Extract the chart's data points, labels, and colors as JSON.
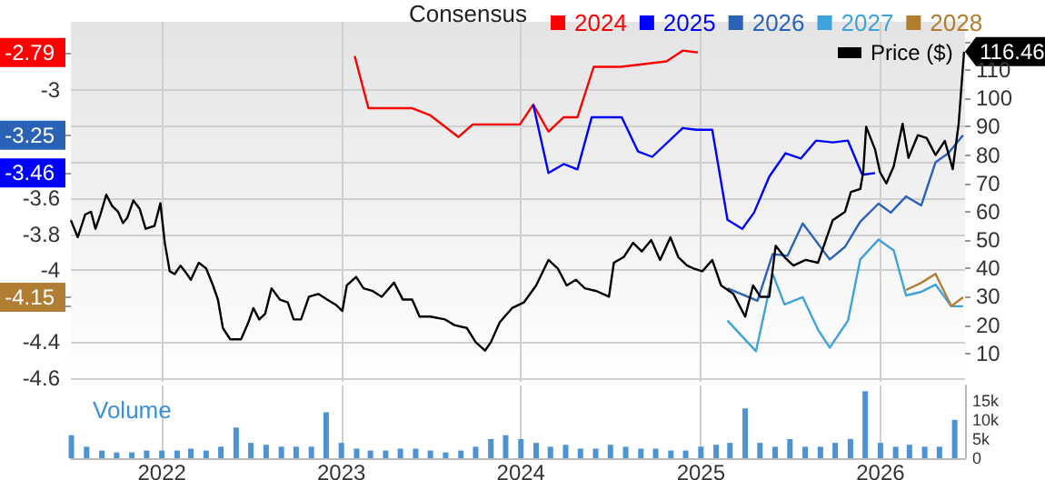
{
  "chart_data": [
    {
      "type": "line",
      "legend": "top right",
      "legend_title": "Consensus",
      "xlim": [
        "2021-06-30",
        "2026-06-22"
      ],
      "xticks": [
        "2022",
        "2023",
        "2024",
        "2025",
        "2026"
      ],
      "ylim": [
        -4.62,
        -2.62
      ],
      "yticks": [
        -2.79,
        -3,
        {
          "value": -3.2,
          "label": null
        },
        -3.25,
        {
          "value": -3.4,
          "label": null
        },
        -3.46,
        -3.6,
        -3.8,
        -4,
        -4.15,
        {
          "value": -4.2,
          "label": null
        },
        -4.4,
        -4.6
      ],
      "y2lim": [
        0,
        127
      ],
      "y2ticks": [
        10,
        20,
        30,
        40,
        50,
        60,
        70,
        80,
        90,
        100,
        110,
        {
          "value": 120,
          "label": null
        }
      ],
      "tick_labels": "y",
      "grid": true,
      "series": [
        {
          "name": "2024",
          "color": "#ff0000",
          "axis": "y",
          "x": [
            "2023-01-28",
            "2023-02-25",
            "2023-05-25",
            "2023-07-01",
            "2023-08-27",
            "2023-09-25",
            "2023-12-30",
            "2024-01-26",
            "2024-02-26",
            "2024-03-28",
            "2024-04-25",
            "2024-05-28",
            "2024-07-22",
            "2024-10-23",
            "2024-11-25",
            "2024-12-26"
          ],
          "values": [
            -2.81,
            -3.1,
            -3.1,
            -3.14,
            -3.26,
            -3.19,
            -3.19,
            -3.08,
            -3.23,
            -3.15,
            -3.15,
            -2.87,
            -2.87,
            -2.84,
            -2.78,
            -2.79
          ]
        },
        {
          "name": "2025",
          "color": "#0000ff",
          "axis": "y",
          "x": [
            "2024-01-26",
            "2024-02-26",
            "2024-03-28",
            "2024-04-25",
            "2024-05-24",
            "2024-07-24",
            "2024-08-26",
            "2024-09-24",
            "2024-11-25",
            "2024-12-23",
            "2025-01-24",
            "2025-02-24",
            "2025-03-26",
            "2025-04-19",
            "2025-05-20",
            "2025-06-22",
            "2025-07-23",
            "2025-08-23",
            "2025-09-26",
            "2025-10-27",
            "2025-11-25",
            "2025-12-21"
          ],
          "values": [
            -3.08,
            -3.46,
            -3.41,
            -3.44,
            -3.15,
            -3.15,
            -3.34,
            -3.37,
            -3.21,
            -3.22,
            -3.22,
            -3.72,
            -3.77,
            -3.68,
            -3.48,
            -3.35,
            -3.38,
            -3.28,
            -3.29,
            -3.28,
            -3.47,
            -3.46
          ]
        },
        {
          "name": "2026",
          "color": "#2a62b8",
          "axis": "y",
          "x": [
            "2025-02-24",
            "2025-04-26",
            "2025-05-27",
            "2025-06-26",
            "2025-07-27",
            "2025-09-20",
            "2025-10-21",
            "2025-11-21",
            "2025-12-28",
            "2026-01-22",
            "2026-02-22",
            "2026-03-25",
            "2026-04-23",
            "2026-05-19",
            "2026-06-18"
          ],
          "values": [
            -4.1,
            -4.17,
            -3.91,
            -3.92,
            -3.74,
            -3.94,
            -3.87,
            -3.73,
            -3.63,
            -3.68,
            -3.59,
            -3.64,
            -3.4,
            -3.35,
            -3.25
          ]
        },
        {
          "name": "2027",
          "color": "#3fa2d8",
          "axis": "y",
          "x": [
            "2025-02-24",
            "2025-04-23",
            "2025-05-27",
            "2025-06-20",
            "2025-07-27",
            "2025-08-27",
            "2025-09-20",
            "2025-10-27",
            "2025-11-21",
            "2025-12-28",
            "2026-01-28",
            "2026-02-22",
            "2026-03-25",
            "2026-04-23",
            "2026-05-25",
            "2026-06-18"
          ],
          "values": [
            -4.28,
            -4.45,
            -4.02,
            -4.19,
            -4.15,
            -4.33,
            -4.43,
            -4.28,
            -3.94,
            -3.83,
            -3.89,
            -4.14,
            -4.12,
            -4.08,
            -4.2,
            -4.2
          ]
        },
        {
          "name": "2028",
          "color": "#b07d32",
          "axis": "y",
          "x": [
            "2026-02-22",
            "2026-03-25",
            "2026-04-23",
            "2026-05-25",
            "2026-06-18"
          ],
          "values": [
            -4.11,
            -4.07,
            -4.02,
            -4.2,
            -4.15
          ]
        },
        {
          "name": "Price ($)",
          "color": "#000000",
          "axis": "y2",
          "x": [
            "2021-06-30",
            "2021-07-14",
            "2021-07-29",
            "2021-08-10",
            "2021-08-19",
            "2021-08-29",
            "2021-09-10",
            "2021-09-22",
            "2021-10-04",
            "2021-10-14",
            "2021-10-23",
            "2021-11-04",
            "2021-11-17",
            "2021-11-29",
            "2021-12-17",
            "2021-12-29",
            "2022-01-07",
            "2022-01-17",
            "2022-01-27",
            "2022-02-08",
            "2022-02-17",
            "2022-03-01",
            "2022-03-17",
            "2022-04-01",
            "2022-04-15",
            "2022-04-25",
            "2022-05-05",
            "2022-05-20",
            "2022-06-11",
            "2022-06-26",
            "2022-07-06",
            "2022-07-18",
            "2022-07-30",
            "2022-08-12",
            "2022-08-29",
            "2022-09-14",
            "2022-09-26",
            "2022-10-11",
            "2022-10-27",
            "2022-11-15",
            "2022-12-03",
            "2022-12-22",
            "2023-01-03",
            "2023-01-12",
            "2023-01-31",
            "2023-02-15",
            "2023-03-06",
            "2023-03-24",
            "2023-04-18",
            "2023-05-06",
            "2023-05-25",
            "2023-06-09",
            "2023-07-01",
            "2023-07-31",
            "2023-08-19",
            "2023-09-13",
            "2023-10-01",
            "2023-10-20",
            "2023-11-01",
            "2023-11-19",
            "2023-12-14",
            "2024-01-07",
            "2024-02-01",
            "2024-02-26",
            "2024-03-16",
            "2024-04-03",
            "2024-04-22",
            "2024-05-10",
            "2024-06-03",
            "2024-06-28",
            "2024-07-08",
            "2024-07-28",
            "2024-08-16",
            "2024-09-03",
            "2024-09-22",
            "2024-10-10",
            "2024-10-31",
            "2024-11-16",
            "2024-12-04",
            "2024-12-17",
            "2025-01-04",
            "2025-01-24",
            "2025-02-11",
            "2025-03-08",
            "2025-04-01",
            "2025-04-17",
            "2025-05-02",
            "2025-05-20",
            "2025-06-02",
            "2025-06-20",
            "2025-07-08",
            "2025-08-02",
            "2025-08-27",
            "2025-09-14",
            "2025-09-26",
            "2025-10-21",
            "2025-11-02",
            "2025-11-21",
            "2025-11-27",
            "2025-12-03",
            "2025-12-21",
            "2025-12-31",
            "2026-01-13",
            "2026-01-28",
            "2026-02-15",
            "2026-02-27",
            "2026-03-18",
            "2026-04-05",
            "2026-04-23",
            "2026-05-12",
            "2026-05-28",
            "2026-06-09",
            "2026-06-20"
          ],
          "values": [
            57,
            51,
            59,
            60,
            54,
            59,
            66,
            62,
            60,
            56,
            58,
            64,
            61,
            54,
            55,
            63,
            49,
            39,
            38,
            41,
            39,
            36,
            42,
            40,
            34,
            29,
            19,
            15,
            15,
            21,
            26,
            22,
            24,
            33,
            29,
            28,
            22,
            22,
            30,
            31,
            29,
            27,
            25,
            34,
            37,
            33,
            32,
            30,
            35,
            29,
            29,
            23,
            23,
            22,
            20,
            19,
            14,
            11,
            14,
            21,
            26,
            28,
            34,
            43,
            40,
            34,
            36,
            33,
            32,
            30,
            42,
            44,
            49,
            46,
            50,
            43,
            51,
            44,
            41,
            40,
            39,
            43,
            34,
            31,
            23,
            34,
            30,
            30,
            48,
            44,
            41,
            43,
            42,
            51,
            57,
            60,
            67,
            68,
            74,
            90,
            82,
            74,
            70,
            76,
            91,
            79,
            87,
            86,
            80,
            85,
            75,
            91,
            116.46
          ],
          "value_labels": [
            null,
            null,
            null,
            null,
            null,
            null,
            null,
            null,
            null,
            null,
            null,
            null,
            null,
            null,
            null,
            null,
            null,
            null,
            null,
            null,
            null,
            null,
            null,
            null,
            null,
            null,
            null,
            null,
            null,
            null,
            null,
            null,
            null,
            null,
            null,
            null,
            null,
            null,
            null,
            null,
            null,
            null,
            null,
            null,
            null,
            null,
            null,
            null,
            null,
            null,
            null,
            null,
            null,
            null,
            null,
            null,
            null,
            null,
            null,
            null,
            null,
            null,
            null,
            null,
            null,
            null,
            null,
            null,
            null,
            null,
            null,
            null,
            null,
            null,
            null,
            null,
            null,
            null,
            null,
            null,
            null,
            null,
            null,
            null,
            null,
            null,
            null,
            null,
            null,
            null,
            null,
            null,
            null,
            null,
            null,
            null,
            null,
            null,
            null,
            null,
            null,
            null,
            null,
            null,
            null,
            null,
            null,
            null,
            null,
            null,
            null,
            null,
            "116.46"
          ]
        }
      ]
    },
    {
      "type": "bar",
      "title": "Volume",
      "color": "#4b93d3",
      "xlim": [
        "2021-06-30",
        "2026-06-22"
      ],
      "xticks": [
        "2022",
        "2023",
        "2024",
        "2025",
        "2026"
      ],
      "ylim": [
        0,
        19
      ],
      "yticks": [
        0,
        {
          "value": 5,
          "label": "5k"
        },
        {
          "value": 10,
          "label": "10k"
        },
        {
          "value": 15,
          "label": "15k"
        }
      ],
      "grid": "x",
      "x": [
        "2021-07",
        "2021-08",
        "2021-09",
        "2021-10",
        "2021-11",
        "2021-12",
        "2022-01",
        "2022-02",
        "2022-03",
        "2022-04",
        "2022-05",
        "2022-06",
        "2022-07",
        "2022-08",
        "2022-09",
        "2022-10",
        "2022-11",
        "2022-12",
        "2023-01",
        "2023-02",
        "2023-03",
        "2023-04",
        "2023-05",
        "2023-06",
        "2023-07",
        "2023-08",
        "2023-09",
        "2023-10",
        "2023-11",
        "2023-12",
        "2024-01",
        "2024-02",
        "2024-03",
        "2024-04",
        "2024-05",
        "2024-06",
        "2024-07",
        "2024-08",
        "2024-09",
        "2024-10",
        "2024-11",
        "2024-12",
        "2025-01",
        "2025-02",
        "2025-03",
        "2025-04",
        "2025-05",
        "2025-06",
        "2025-07",
        "2025-08",
        "2025-09",
        "2025-10",
        "2025-11",
        "2025-12",
        "2026-01",
        "2026-02",
        "2026-03",
        "2026-04",
        "2026-05",
        "2026-06"
      ],
      "values": [
        6,
        3,
        2,
        1.5,
        1.5,
        2,
        2,
        2,
        2.5,
        2,
        3,
        8,
        4,
        3.5,
        3,
        3,
        3,
        12,
        4,
        2.5,
        2,
        2,
        2.5,
        2.5,
        2,
        1.5,
        2,
        3,
        5,
        6,
        5,
        4,
        3,
        3.5,
        2.5,
        2.5,
        3.5,
        3,
        2.5,
        2.5,
        2,
        2,
        3,
        3.5,
        4,
        13,
        4,
        3,
        5,
        3,
        3,
        4,
        5,
        17.5,
        4,
        3,
        3.5,
        3,
        3,
        10
      ]
    }
  ]
}
